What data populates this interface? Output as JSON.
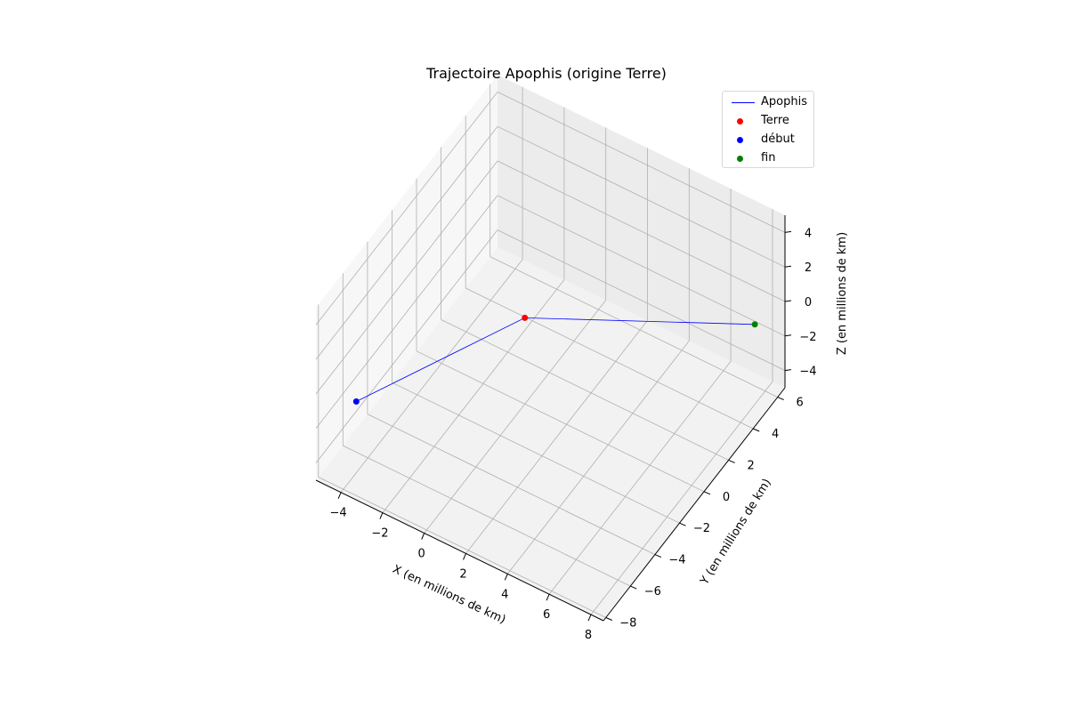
{
  "chart_data": {
    "type": "line3d",
    "title": "Trajectoire Apophis (origine Terre)",
    "xlabel": "X (en millions de km)",
    "ylabel": "Y (en millions de km)",
    "zlabel": "Z (en millions de km)",
    "x_ticks": [
      "−4",
      "−2",
      "0",
      "2",
      "4",
      "6",
      "8"
    ],
    "y_ticks": [
      "−8",
      "−6",
      "−4",
      "−2",
      "0",
      "2",
      "4",
      "6"
    ],
    "z_ticks": [
      "−4",
      "−2",
      "0",
      "2",
      "4"
    ],
    "grid": true,
    "legend_position": "top-right",
    "series": [
      {
        "name": "Apophis",
        "kind": "line",
        "color": "#0000ff",
        "points": [
          [
            -3.5,
            -7.8,
            0.2
          ],
          [
            0.0,
            0.0,
            0.0
          ],
          [
            7.8,
            5.5,
            -0.8
          ]
        ]
      },
      {
        "name": "Terre",
        "kind": "scatter",
        "color": "#ff0000",
        "points": [
          [
            0.0,
            0.0,
            0.0
          ]
        ]
      },
      {
        "name": "début",
        "kind": "scatter",
        "color": "#0000ff",
        "points": [
          [
            -3.5,
            -7.8,
            0.2
          ]
        ]
      },
      {
        "name": "fin",
        "kind": "scatter",
        "color": "#008000",
        "points": [
          [
            7.8,
            5.5,
            -0.8
          ]
        ]
      }
    ]
  },
  "legend": {
    "items": [
      {
        "label": "Apophis",
        "kind": "line",
        "color": "#0000ff"
      },
      {
        "label": "Terre",
        "kind": "marker",
        "color": "#ff0000"
      },
      {
        "label": "début",
        "kind": "marker",
        "color": "#0000ff"
      },
      {
        "label": "fin",
        "kind": "marker",
        "color": "#008000"
      }
    ]
  }
}
